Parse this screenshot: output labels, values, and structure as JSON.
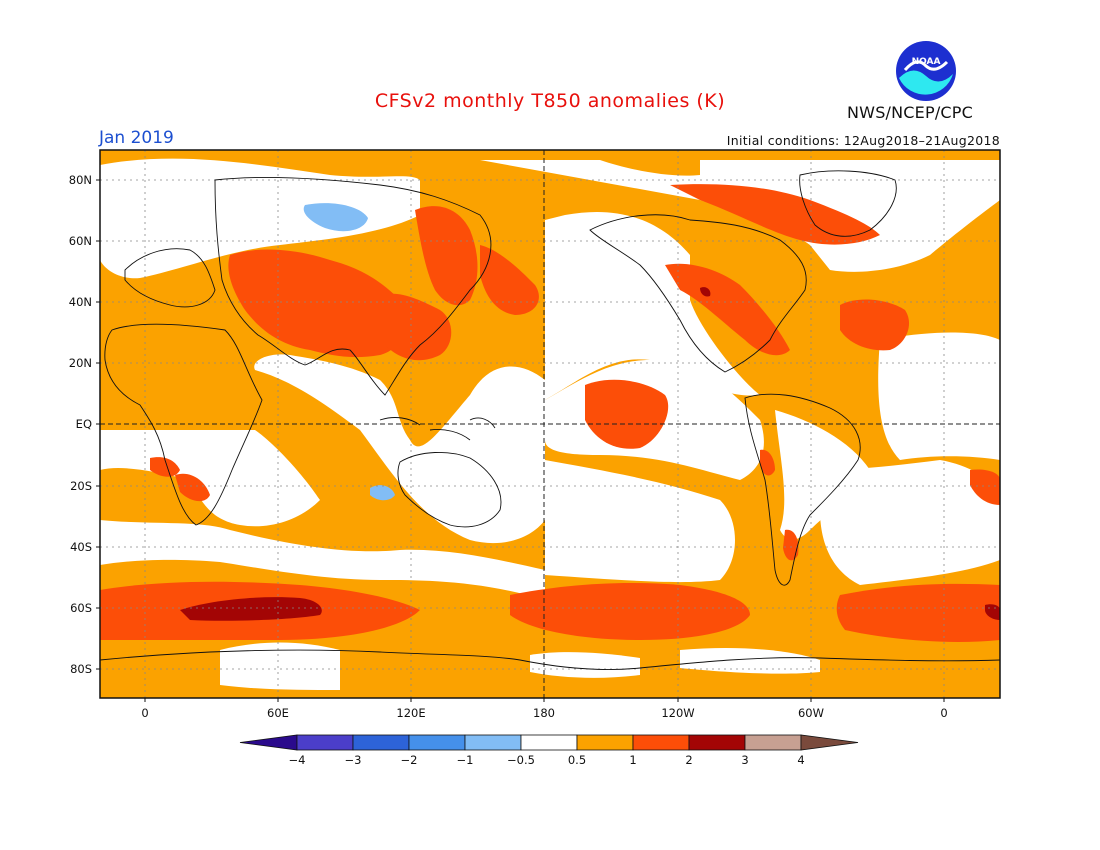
{
  "header": {
    "title": "CFSv2 monthly T850 anomalies (K)",
    "month": "Jan 2019",
    "initial_conditions": "Initial conditions: 12Aug2018–21Aug2018",
    "agency": "NWS/NCEP/CPC",
    "logo_text": "NOAA"
  },
  "axes": {
    "lat_labels": [
      "80N",
      "60N",
      "40N",
      "20N",
      "EQ",
      "20S",
      "40S",
      "60S",
      "80S"
    ],
    "lon_labels": [
      "0",
      "60E",
      "120E",
      "180",
      "120W",
      "60W",
      "0"
    ]
  },
  "colorbar": {
    "labels": [
      "−4",
      "−3",
      "−2",
      "−1",
      "−0.5",
      "0.5",
      "1",
      "2",
      "3",
      "4"
    ],
    "colors": [
      "#2a0a8c",
      "#4b3ec9",
      "#2d63d8",
      "#4590ea",
      "#82bdf5",
      "#ffffff",
      "#fba200",
      "#fc4e08",
      "#a30505",
      "#c7a092",
      "#7a4a3c"
    ]
  },
  "colors": {
    "ocean_white": "#ffffff",
    "anom_1": "#fba200",
    "anom_2": "#fc4e08",
    "anom_3": "#a30505",
    "anom_neg": "#82bdf5"
  }
}
